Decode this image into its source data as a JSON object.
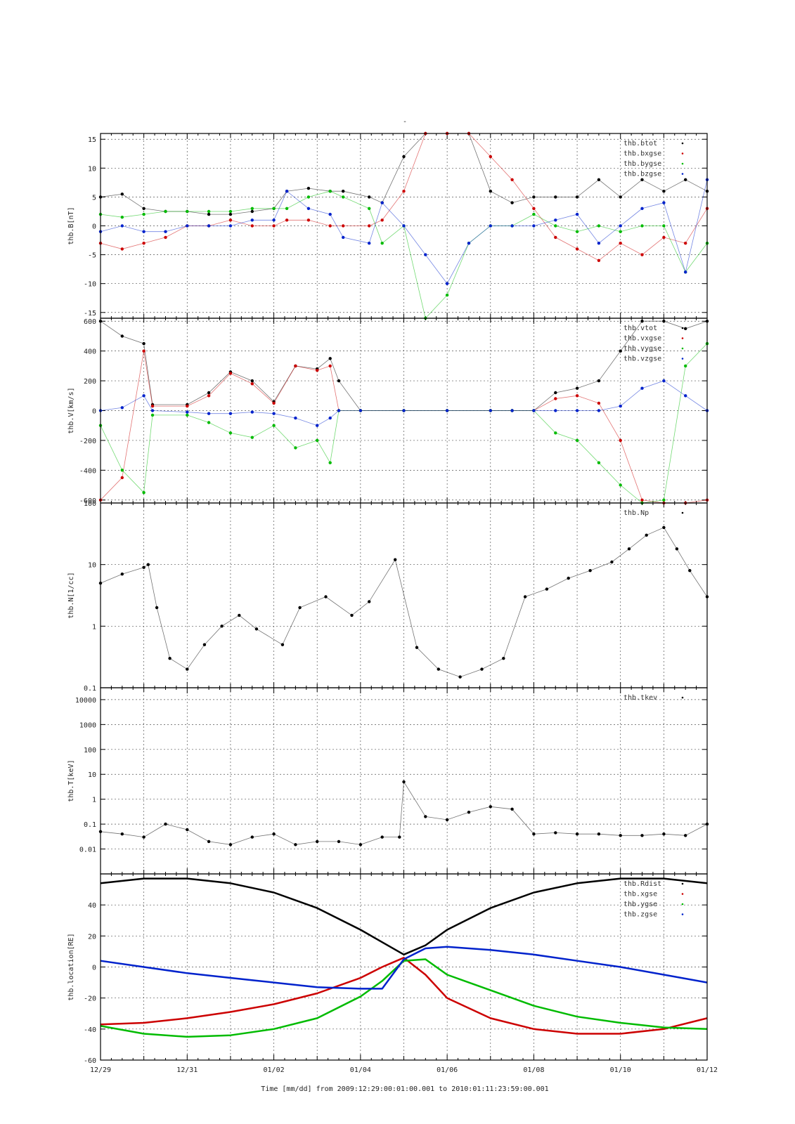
{
  "figure": {
    "title": "-",
    "xlabel": "Time [mm/dd]  from 2009:12:29:00:01:00.001  to  2010:01:11:23:59:00.001",
    "x_tick_labels": [
      "12/29",
      "12/31",
      "01/02",
      "01/04",
      "01/06",
      "01/08",
      "01/10",
      "01/12"
    ]
  },
  "chart_data": [
    {
      "type": "scatter",
      "ylabel": "thb.B[nT]",
      "ylim": [
        -16,
        16
      ],
      "y_scale": "linear",
      "grid": true,
      "legend_placement": "top-right",
      "y_ticks": [
        -15,
        -10,
        -5,
        0,
        5,
        10,
        15
      ],
      "y_tick_labels": [
        "-15",
        "-10",
        "-5",
        "0",
        "5",
        "10",
        "15"
      ],
      "series": [
        {
          "name": "thb.btot",
          "color": "#000000",
          "x": [
            0,
            0.5,
            1,
            1.5,
            2,
            2.5,
            3,
            3.5,
            4,
            4.3,
            4.8,
            5.3,
            5.6,
            6.2,
            6.5,
            7,
            7.5,
            8,
            8.5,
            9,
            9.5,
            10,
            10.5,
            11,
            11.5,
            12,
            12.5,
            13,
            13.5,
            14
          ],
          "values": [
            5,
            5.5,
            3,
            2.5,
            2.5,
            2,
            2,
            2.5,
            3,
            6,
            6.5,
            6,
            6,
            5,
            4,
            12,
            16,
            16,
            16,
            6,
            4,
            5,
            5,
            5,
            8,
            5,
            8,
            6,
            8,
            6
          ]
        },
        {
          "name": "thb.bxgse",
          "color": "#cc0000",
          "x": [
            0,
            0.5,
            1,
            1.5,
            2,
            2.5,
            3,
            3.5,
            4,
            4.3,
            4.8,
            5.3,
            5.6,
            6.2,
            6.5,
            7,
            7.5,
            8,
            8.5,
            9,
            9.5,
            10,
            10.5,
            11,
            11.5,
            12,
            12.5,
            13,
            13.5,
            14
          ],
          "values": [
            -3,
            -4,
            -3,
            -2,
            0,
            0,
            1,
            0,
            0,
            1,
            1,
            0,
            0,
            0,
            1,
            6,
            16,
            16,
            16,
            12,
            8,
            3,
            -2,
            -4,
            -6,
            -3,
            -5,
            -2,
            -3,
            3
          ]
        },
        {
          "name": "thb.bygse",
          "color": "#00bb00",
          "x": [
            0,
            0.5,
            1,
            1.5,
            2,
            2.5,
            3,
            3.5,
            4,
            4.3,
            4.8,
            5.3,
            5.6,
            6.2,
            6.5,
            7,
            7.5,
            8,
            8.5,
            9,
            9.5,
            10,
            10.5,
            11,
            11.5,
            12,
            12.5,
            13,
            13.5,
            14
          ],
          "values": [
            2,
            1.5,
            2,
            2.5,
            2.5,
            2.5,
            2.5,
            3,
            3,
            3,
            5,
            6,
            5,
            3,
            -3,
            0,
            -16,
            -12,
            -3,
            0,
            0,
            2,
            0,
            -1,
            0,
            -1,
            0,
            0,
            -8,
            -3
          ]
        },
        {
          "name": "thb.bzgse",
          "color": "#0022cc",
          "x": [
            0,
            0.5,
            1,
            1.5,
            2,
            2.5,
            3,
            3.5,
            4,
            4.3,
            4.8,
            5.3,
            5.6,
            6.2,
            6.5,
            7,
            7.5,
            8,
            8.5,
            9,
            9.5,
            10,
            10.5,
            11,
            11.5,
            12,
            12.5,
            13,
            13.5,
            14
          ],
          "values": [
            -1,
            0,
            -1,
            -1,
            0,
            0,
            0,
            1,
            1,
            6,
            3,
            2,
            -2,
            -3,
            4,
            0,
            -5,
            -10,
            -3,
            0,
            0,
            0,
            1,
            2,
            -3,
            0,
            3,
            4,
            -8,
            8
          ]
        }
      ]
    },
    {
      "type": "scatter",
      "ylabel": "thb.V[km/s]",
      "ylim": [
        -620,
        620
      ],
      "y_scale": "linear",
      "grid": true,
      "legend_placement": "top-right",
      "y_ticks": [
        -600,
        -400,
        -200,
        0,
        200,
        400,
        600
      ],
      "y_tick_labels": [
        "-600",
        "-400",
        "-200",
        "0",
        "200",
        "400",
        "600"
      ],
      "series": [
        {
          "name": "thb.vtot",
          "color": "#000000",
          "x": [
            0,
            0.5,
            1,
            1.2,
            2,
            2.5,
            3,
            3.5,
            4,
            4.5,
            5,
            5.3,
            5.5,
            6,
            7,
            8,
            9,
            9.5,
            10,
            10.5,
            11,
            11.5,
            12,
            12.5,
            13,
            13.5,
            14
          ],
          "values": [
            600,
            500,
            450,
            40,
            40,
            120,
            260,
            200,
            60,
            300,
            280,
            350,
            200,
            0,
            0,
            0,
            0,
            0,
            0,
            120,
            150,
            200,
            400,
            600,
            600,
            550,
            600
          ]
        },
        {
          "name": "thb.vxgse",
          "color": "#cc0000",
          "x": [
            0,
            0.5,
            1,
            1.2,
            2,
            2.5,
            3,
            3.5,
            4,
            4.5,
            5,
            5.3,
            5.5,
            6,
            7,
            8,
            9,
            9.5,
            10,
            10.5,
            11,
            11.5,
            12,
            12.5,
            13,
            13.5,
            14
          ],
          "values": [
            -600,
            -450,
            400,
            30,
            30,
            100,
            250,
            180,
            50,
            300,
            270,
            300,
            0,
            0,
            0,
            0,
            0,
            0,
            0,
            80,
            100,
            50,
            -200,
            -600,
            -620,
            -620,
            -600
          ]
        },
        {
          "name": "thb.vygse",
          "color": "#00bb00",
          "x": [
            0,
            0.5,
            1,
            1.2,
            2,
            2.5,
            3,
            3.5,
            4,
            4.5,
            5,
            5.3,
            5.5,
            6,
            7,
            8,
            9,
            9.5,
            10,
            10.5,
            11,
            11.5,
            12,
            12.5,
            13,
            13.5,
            14
          ],
          "values": [
            -100,
            -400,
            -550,
            -30,
            -30,
            -80,
            -150,
            -180,
            -100,
            -250,
            -200,
            -350,
            0,
            0,
            0,
            0,
            0,
            0,
            0,
            -150,
            -200,
            -350,
            -500,
            -620,
            -600,
            300,
            450
          ]
        },
        {
          "name": "thb.vzgse",
          "color": "#0022cc",
          "x": [
            0,
            0.5,
            1,
            1.2,
            2,
            2.5,
            3,
            3.5,
            4,
            4.5,
            5,
            5.3,
            5.5,
            6,
            7,
            8,
            9,
            9.5,
            10,
            10.5,
            11,
            11.5,
            12,
            12.5,
            13,
            13.5,
            14
          ],
          "values": [
            0,
            20,
            100,
            0,
            -10,
            -20,
            -20,
            -10,
            -20,
            -50,
            -100,
            -50,
            0,
            0,
            0,
            0,
            0,
            0,
            0,
            0,
            0,
            0,
            30,
            150,
            200,
            100,
            0
          ]
        }
      ]
    },
    {
      "type": "scatter",
      "ylabel": "thb.N[1/cc]",
      "ylim": [
        0.1,
        100
      ],
      "y_scale": "log",
      "grid": true,
      "legend_placement": "top-right",
      "y_ticks": [
        0.1,
        1,
        10,
        100
      ],
      "y_tick_labels": [
        "0.1",
        "1",
        "10",
        "100"
      ],
      "series": [
        {
          "name": "thb.Np",
          "color": "#000000",
          "x": [
            0,
            0.5,
            1,
            1.1,
            1.3,
            1.6,
            2,
            2.4,
            2.8,
            3.2,
            3.6,
            4.2,
            4.6,
            5.2,
            5.8,
            6.2,
            6.8,
            7.3,
            7.8,
            8.3,
            8.8,
            9.3,
            9.8,
            10.3,
            10.8,
            11.3,
            11.8,
            12.2,
            12.6,
            13,
            13.3,
            13.6,
            14
          ],
          "values": [
            5,
            7,
            9,
            10,
            2,
            0.3,
            0.2,
            0.5,
            1,
            1.5,
            0.9,
            0.5,
            2,
            3,
            1.5,
            2.5,
            12,
            0.45,
            0.2,
            0.15,
            0.2,
            0.3,
            3,
            4,
            6,
            8,
            11,
            18,
            30,
            40,
            18,
            8,
            3
          ]
        }
      ]
    },
    {
      "type": "scatter",
      "ylabel": "thb.T[keV]",
      "ylim": [
        0.001,
        30000
      ],
      "y_scale": "log",
      "grid": true,
      "legend_placement": "top-right",
      "y_ticks": [
        0.01,
        0.1,
        1,
        10,
        100,
        1000,
        10000
      ],
      "y_tick_labels": [
        "0.01",
        "0.1",
        "1",
        "10",
        "100",
        "1000",
        "10000"
      ],
      "series": [
        {
          "name": "thb.tkev",
          "color": "#000000",
          "x": [
            0,
            0.5,
            1,
            1.5,
            2,
            2.5,
            3,
            3.5,
            4,
            4.5,
            5,
            5.5,
            6,
            6.5,
            6.9,
            7,
            7.5,
            8,
            8.5,
            9,
            9.5,
            10,
            10.5,
            11,
            11.5,
            12,
            12.5,
            13,
            13.5,
            14
          ],
          "values": [
            0.05,
            0.04,
            0.03,
            0.1,
            0.06,
            0.02,
            0.015,
            0.03,
            0.04,
            0.015,
            0.02,
            0.02,
            0.015,
            0.03,
            0.03,
            5,
            0.2,
            0.15,
            0.3,
            0.5,
            0.4,
            0.04,
            0.045,
            0.04,
            0.04,
            0.035,
            0.035,
            0.04,
            0.035,
            0.1
          ]
        }
      ]
    },
    {
      "type": "line",
      "ylabel": "thb.location[RE]",
      "ylim": [
        -60,
        60
      ],
      "y_scale": "linear",
      "grid": true,
      "legend_placement": "top-right",
      "y_ticks": [
        -60,
        -40,
        -20,
        0,
        20,
        40
      ],
      "y_tick_labels": [
        "-60",
        "-40",
        "-20",
        "0",
        "20",
        "40"
      ],
      "series": [
        {
          "name": "thb.Rdist",
          "color": "#000000",
          "x": [
            0,
            1,
            2,
            3,
            4,
            5,
            6,
            6.5,
            7,
            7.5,
            8,
            9,
            10,
            11,
            12,
            13,
            14
          ],
          "values": [
            54,
            57,
            57,
            54,
            48,
            38,
            24,
            16,
            8,
            14,
            24,
            38,
            48,
            54,
            57,
            57,
            54
          ]
        },
        {
          "name": "thb.xgse",
          "color": "#cc0000",
          "x": [
            0,
            1,
            2,
            3,
            4,
            5,
            6,
            6.5,
            7,
            7.5,
            8,
            9,
            10,
            11,
            12,
            13,
            14
          ],
          "values": [
            -37,
            -36,
            -33,
            -29,
            -24,
            -17,
            -7,
            0,
            6,
            -5,
            -20,
            -33,
            -40,
            -43,
            -43,
            -40,
            -33
          ]
        },
        {
          "name": "thb.ygse",
          "color": "#00bb00",
          "x": [
            0,
            1,
            2,
            3,
            4,
            5,
            6,
            6.5,
            7,
            7.5,
            8,
            9,
            10,
            11,
            12,
            13,
            14
          ],
          "values": [
            -38,
            -43,
            -45,
            -44,
            -40,
            -33,
            -19,
            -9,
            4,
            5,
            -5,
            -15,
            -25,
            -32,
            -36,
            -39,
            -40
          ]
        },
        {
          "name": "thb.zgse",
          "color": "#0022cc",
          "x": [
            0,
            1,
            2,
            3,
            4,
            5,
            6,
            6.5,
            7,
            7.5,
            8,
            9,
            10,
            11,
            12,
            13,
            14
          ],
          "values": [
            4,
            0,
            -4,
            -7,
            -10,
            -13,
            -14,
            -14,
            5,
            12,
            13,
            11,
            8,
            4,
            0,
            -5,
            -10
          ]
        }
      ]
    }
  ]
}
